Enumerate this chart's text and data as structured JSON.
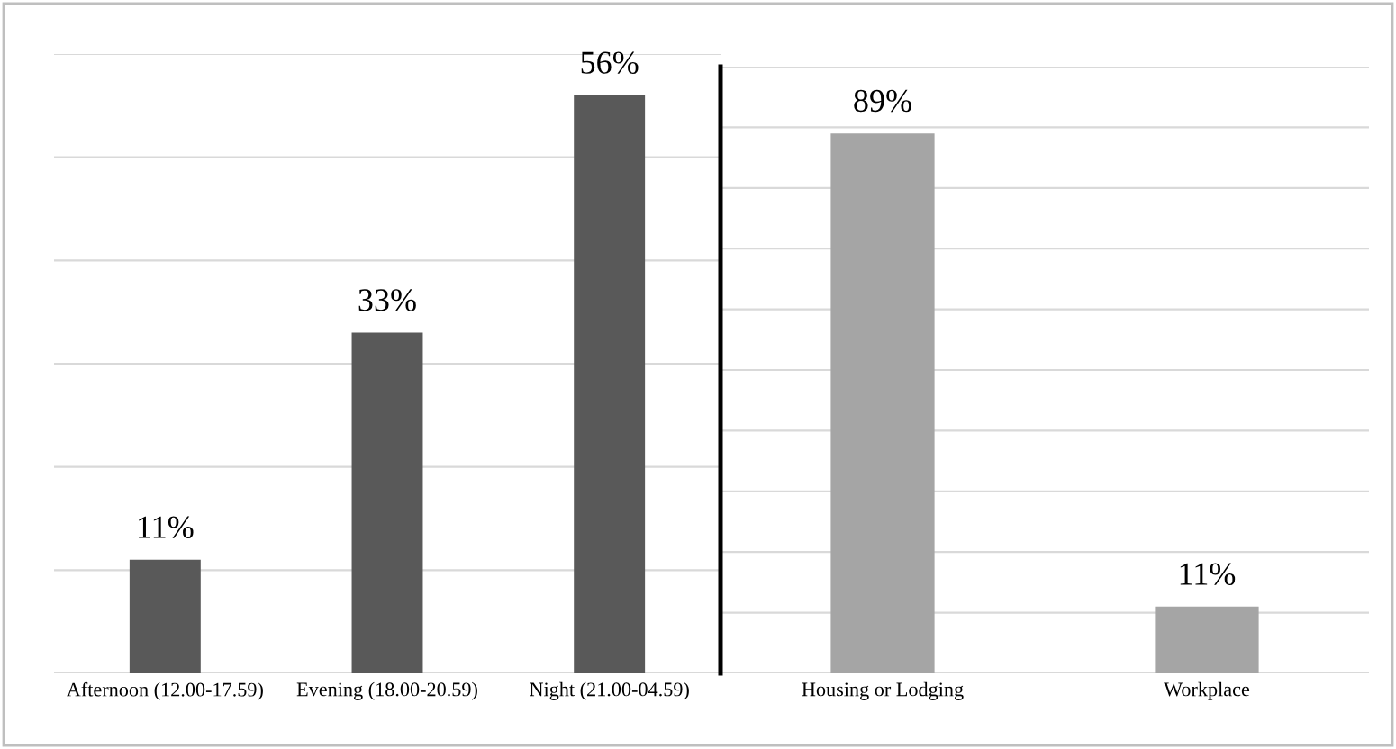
{
  "chart_data": [
    {
      "type": "bar",
      "categories": [
        "Afternoon (12.00-17.59)",
        "Evening (18.00-20.59)",
        "Night (21.00-04.59)"
      ],
      "values": [
        11,
        33,
        56
      ],
      "color": "#595959",
      "value_labels": [
        "11%",
        "33%",
        "56%"
      ],
      "ylim": [
        0,
        60
      ],
      "yticks": [
        {
          "value": 0,
          "label": null
        },
        {
          "value": 10,
          "label": null
        },
        {
          "value": 20,
          "label": null
        },
        {
          "value": 30,
          "label": null
        },
        {
          "value": 40,
          "label": null
        },
        {
          "value": 50,
          "label": null
        },
        {
          "value": 60,
          "label": null
        }
      ],
      "grid": "y",
      "tick_labels": "x"
    },
    {
      "type": "bar",
      "categories": [
        "Housing or Lodging",
        "Workplace"
      ],
      "values": [
        89,
        11
      ],
      "color": "#a5a5a5",
      "value_labels": [
        "89%",
        "11%"
      ],
      "ylim": [
        0,
        100
      ],
      "yticks": [
        {
          "value": 0,
          "label": null
        },
        {
          "value": 10,
          "label": null
        },
        {
          "value": 20,
          "label": null
        },
        {
          "value": 30,
          "label": null
        },
        {
          "value": 40,
          "label": null
        },
        {
          "value": 50,
          "label": null
        },
        {
          "value": 60,
          "label": null
        },
        {
          "value": 70,
          "label": null
        },
        {
          "value": 80,
          "label": null
        },
        {
          "value": 90,
          "label": null
        },
        {
          "value": 100,
          "label": null
        }
      ],
      "grid": "y",
      "tick_labels": "x"
    }
  ]
}
